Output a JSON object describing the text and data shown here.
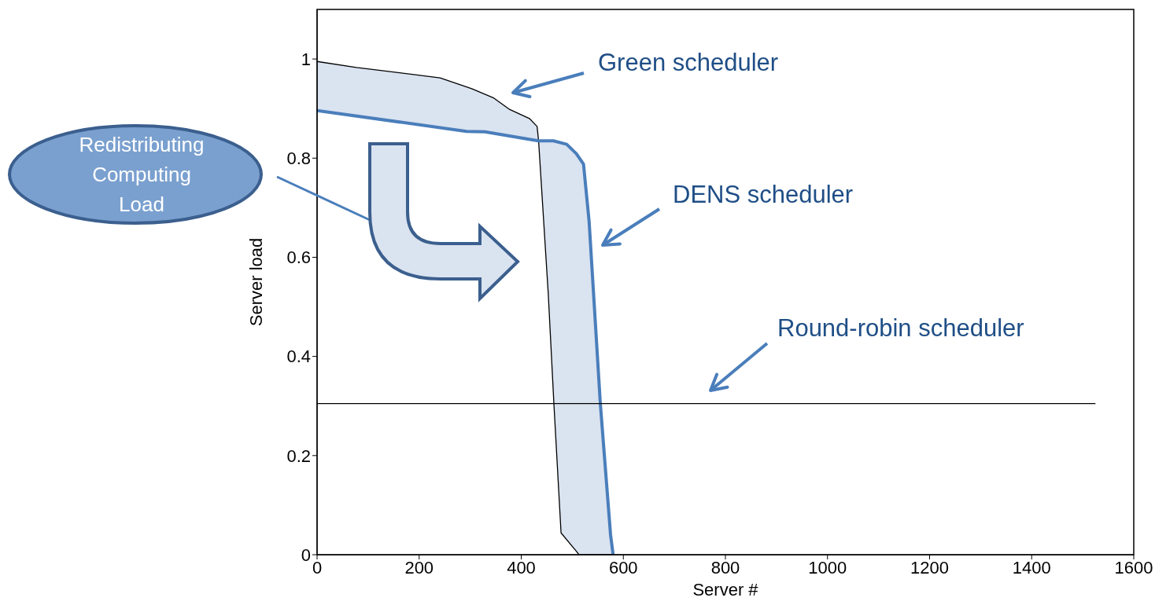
{
  "chart_data": {
    "type": "line",
    "xlabel": "Server #",
    "ylabel": "Server load",
    "xlim": [
      0,
      1600
    ],
    "xticks": [
      0,
      200,
      400,
      600,
      800,
      1000,
      1200,
      1400,
      1600
    ],
    "ylim": [
      0,
      1.1
    ],
    "yticks": [
      0,
      0.2,
      0.4,
      0.6,
      0.8,
      1
    ],
    "grid": false,
    "legend": false,
    "marker": "none",
    "line_style": "solid",
    "series": [
      {
        "color": "#000000",
        "x": [
          0,
          77,
          241,
          303,
          345,
          376,
          416,
          431,
          434,
          453,
          464,
          478,
          508,
          513,
          522,
          533,
          555,
          575,
          580
        ],
        "values": [
          0.995,
          0.983,
          0.962,
          0.94,
          0.922,
          0.899,
          0.88,
          0.864,
          0.835,
          0.525,
          0.304,
          0.044,
          0.007,
          0,
          0,
          0,
          0,
          0,
          0
        ],
        "lower": [
          0.896,
          0.885,
          0.862,
          0.855,
          0.85,
          0.845,
          0.838,
          0.836,
          0.835,
          0.525,
          0.304,
          0.044,
          0.007,
          0,
          0,
          0,
          0,
          0,
          0
        ],
        "upper": [
          0.995,
          0.983,
          0.962,
          0.94,
          0.922,
          0.899,
          0.88,
          0.864,
          0.835,
          0.835,
          0.834,
          0.832,
          0.809,
          0.8,
          0.788,
          0.672,
          0.304,
          0.04,
          0
        ]
      },
      {
        "color": "#4a7ebb",
        "x": [
          0,
          293,
          329,
          422,
          434,
          463,
          489,
          508,
          522,
          533,
          555,
          575,
          580
        ],
        "values": [
          0.896,
          0.854,
          0.853,
          0.837,
          0.835,
          0.835,
          0.828,
          0.809,
          0.788,
          0.672,
          0.304,
          0.04,
          0
        ]
      },
      {
        "color": "#000000",
        "x": [
          0,
          100,
          300,
          500,
          700,
          900,
          1100,
          1300,
          1525
        ],
        "values": [
          0.305,
          0.305,
          0.305,
          0.305,
          0.305,
          0.305,
          0.305,
          0.305,
          0.305
        ]
      }
    ],
    "annotations": [
      "Green scheduler",
      "DENS scheduler",
      "Round-robin scheduler",
      "Redistributing Computing Load"
    ]
  }
}
